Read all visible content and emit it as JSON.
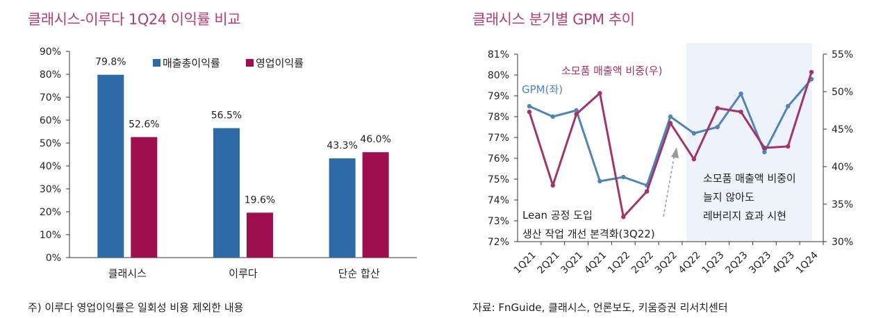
{
  "left_panel": {
    "title": "클래시스-이루다 1Q24 이익률 비교",
    "footnote": "주) 이루다 영업이익률은 일회성 비용 제외한 내용"
  },
  "right_panel": {
    "title": "클래시스 분기별 GPM 추이",
    "footnote": "자료: FnGuide, 클래시스, 언론보도, 키움증권 리서치센터"
  },
  "chart_data": [
    {
      "type": "bar",
      "title": "클래시스-이루다 1Q24 이익률 비교",
      "categories": [
        "클래시스",
        "이루다",
        "단순 합산"
      ],
      "series": [
        {
          "name": "매출총이익률",
          "values": [
            79.8,
            56.5,
            43.3
          ],
          "labels": [
            "79.8%",
            "56.5%",
            "43.3%"
          ],
          "color": "#2e6aa5"
        },
        {
          "name": "영업이익률",
          "values": [
            52.6,
            19.6,
            46.0
          ],
          "labels": [
            "52.6%",
            "19.6%",
            "46.0%"
          ],
          "color": "#9e0f4f"
        }
      ],
      "ylim": [
        0,
        90
      ],
      "yticks": [
        "0%",
        "10%",
        "20%",
        "30%",
        "40%",
        "50%",
        "60%",
        "70%",
        "80%",
        "90%"
      ],
      "legend": "top-right"
    },
    {
      "type": "line",
      "title": "클래시스 분기별 GPM 추이",
      "categories": [
        "1Q21",
        "2Q21",
        "3Q21",
        "4Q21",
        "1Q22",
        "2Q22",
        "3Q22",
        "4Q22",
        "1Q23",
        "2Q23",
        "3Q23",
        "4Q23",
        "1Q24"
      ],
      "series": [
        {
          "name": "GPM(좌)",
          "axis": "left",
          "color": "#4f84b5",
          "values": [
            78.5,
            78.0,
            78.3,
            74.9,
            75.1,
            74.7,
            78.0,
            77.2,
            77.5,
            79.1,
            76.3,
            78.5,
            79.8
          ]
        },
        {
          "name": "소모품 매출액 비중(우)",
          "axis": "right",
          "color": "#a23468",
          "values": [
            47.3,
            37.5,
            47.0,
            49.8,
            33.3,
            36.7,
            45.8,
            41.0,
            47.8,
            47.3,
            42.5,
            42.7,
            52.6
          ]
        }
      ],
      "y_left": {
        "lim": [
          72,
          81
        ],
        "ticks": [
          "72%",
          "73%",
          "74%",
          "75%",
          "76%",
          "77%",
          "78%",
          "79%",
          "80%",
          "81%"
        ]
      },
      "y_right": {
        "lim": [
          30,
          55
        ],
        "ticks": [
          "30%",
          "35%",
          "40%",
          "45%",
          "50%",
          "55%"
        ]
      },
      "highlight": {
        "from": "4Q22",
        "to": "1Q24",
        "color": "#edf2fb"
      },
      "annotations": [
        {
          "lines": [
            "Lean 공정 도입",
            "생산 작업 개선 본격화(3Q22)"
          ]
        },
        {
          "lines": [
            "소모품 매출액 비중이",
            "늘지 않아도",
            "레버리지 효과 시현"
          ]
        }
      ]
    }
  ]
}
